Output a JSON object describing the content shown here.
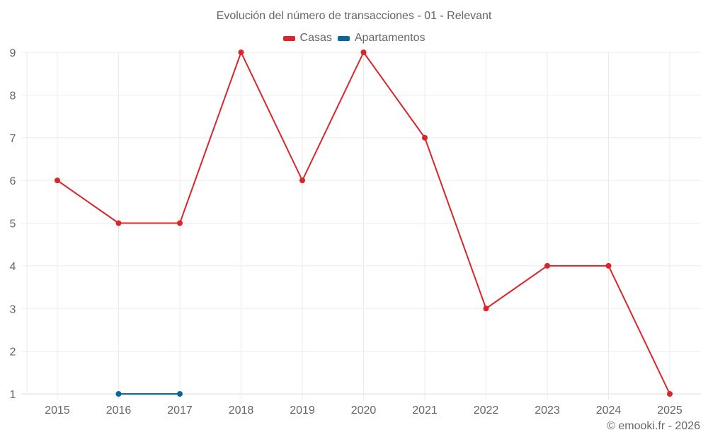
{
  "chart_data": {
    "type": "line",
    "title": "Evolución del número de transacciones - 01 - Relevant",
    "xlabel": "",
    "ylabel": "",
    "categories": [
      "2015",
      "2016",
      "2017",
      "2018",
      "2019",
      "2020",
      "2021",
      "2022",
      "2023",
      "2024",
      "2025"
    ],
    "series": [
      {
        "name": "Casas",
        "color": "#d9262b",
        "values": [
          6,
          5,
          5,
          9,
          6,
          9,
          7,
          3,
          4,
          4,
          1
        ]
      },
      {
        "name": "Apartamentos",
        "color": "#0a679c",
        "values": [
          null,
          1,
          1,
          null,
          null,
          null,
          null,
          null,
          null,
          null,
          null
        ]
      }
    ],
    "yticks": [
      1,
      2,
      3,
      4,
      5,
      6,
      7,
      8,
      9
    ],
    "ylim": [
      1,
      9
    ],
    "grid": true,
    "legend_position": "top"
  },
  "legend": {
    "items": [
      {
        "label": "Casas",
        "color": "#d9262b"
      },
      {
        "label": "Apartamentos",
        "color": "#0a679c"
      }
    ]
  },
  "credit": "© emooki.fr - 2026"
}
